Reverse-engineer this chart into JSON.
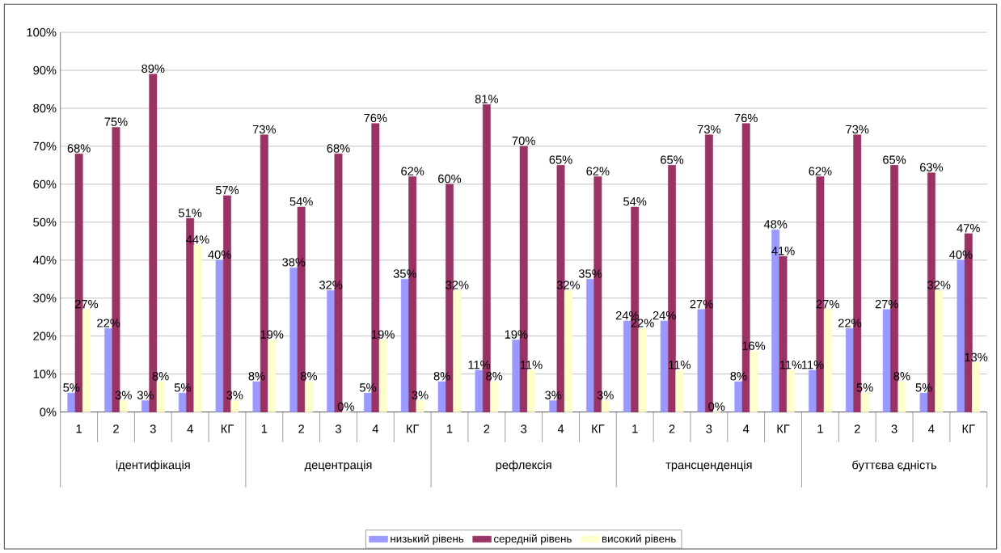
{
  "chart_data": {
    "type": "bar",
    "categories": [
      "1",
      "2",
      "3",
      "4",
      "КГ",
      "1",
      "2",
      "3",
      "4",
      "КГ",
      "1",
      "2",
      "3",
      "4",
      "КГ",
      "1",
      "2",
      "3",
      "4",
      "КГ",
      "1",
      "2",
      "3",
      "4",
      "КГ"
    ],
    "annotations": [
      "ідентифікація",
      "децентрація",
      "рефлексія",
      "трансценденція",
      "буттєва єдність"
    ],
    "series": [
      {
        "name": "низький рівень",
        "color": "#9999ff",
        "values": [
          5,
          22,
          3,
          5,
          40,
          8,
          38,
          32,
          5,
          35,
          8,
          11,
          19,
          3,
          35,
          24,
          24,
          27,
          8,
          48,
          11,
          22,
          27,
          5,
          40
        ],
        "value_labels": [
          "5%",
          "22%",
          "3%",
          "5%",
          "40%",
          "8%",
          "38%",
          "32%",
          "5%",
          "35%",
          "8%",
          "11%",
          "19%",
          "3%",
          "35%",
          "24%",
          "24%",
          "27%",
          "8%",
          "48%",
          "11%",
          "22%",
          "27%",
          "5%",
          "40%"
        ]
      },
      {
        "name": "середній рівень",
        "color": "#993366",
        "values": [
          68,
          75,
          89,
          51,
          57,
          73,
          54,
          68,
          76,
          62,
          60,
          81,
          70,
          65,
          62,
          54,
          65,
          73,
          76,
          41,
          62,
          73,
          65,
          63,
          47
        ],
        "value_labels": [
          "68%",
          "75%",
          "89%",
          "51%",
          "57%",
          "73%",
          "54%",
          "68%",
          "76%",
          "62%",
          "60%",
          "81%",
          "70%",
          "65%",
          "62%",
          "54%",
          "65%",
          "73%",
          "76%",
          "41%",
          "62%",
          "73%",
          "65%",
          "63%",
          "47%"
        ]
      },
      {
        "name": "високий рівень",
        "color": "#ffffcc",
        "values": [
          27,
          3,
          8,
          44,
          3,
          19,
          8,
          0,
          19,
          3,
          32,
          8,
          11,
          32,
          3,
          22,
          11,
          0,
          16,
          11,
          27,
          5,
          8,
          32,
          13
        ],
        "value_labels": [
          "27%",
          "3%",
          "8%",
          "44%",
          "3%",
          "19%",
          "8%",
          "0%",
          "19%",
          "3%",
          "32%",
          "8%",
          "11%",
          "32%",
          "3%",
          "22%",
          "11%",
          "0%",
          "16%",
          "11%",
          "27%",
          "5%",
          "8%",
          "32%",
          "13%"
        ]
      }
    ],
    "ylim": [
      0,
      100
    ],
    "yticks": [
      {
        "value": 0,
        "label": "0%"
      },
      {
        "value": 10,
        "label": "10%"
      },
      {
        "value": 20,
        "label": "20%"
      },
      {
        "value": 30,
        "label": "30%"
      },
      {
        "value": 40,
        "label": "40%"
      },
      {
        "value": 50,
        "label": "50%"
      },
      {
        "value": 60,
        "label": "60%"
      },
      {
        "value": 70,
        "label": "70%"
      },
      {
        "value": 80,
        "label": "80%"
      },
      {
        "value": 90,
        "label": "90%"
      },
      {
        "value": 100,
        "label": "100%"
      }
    ],
    "grid": "y",
    "legend": "bottom"
  }
}
